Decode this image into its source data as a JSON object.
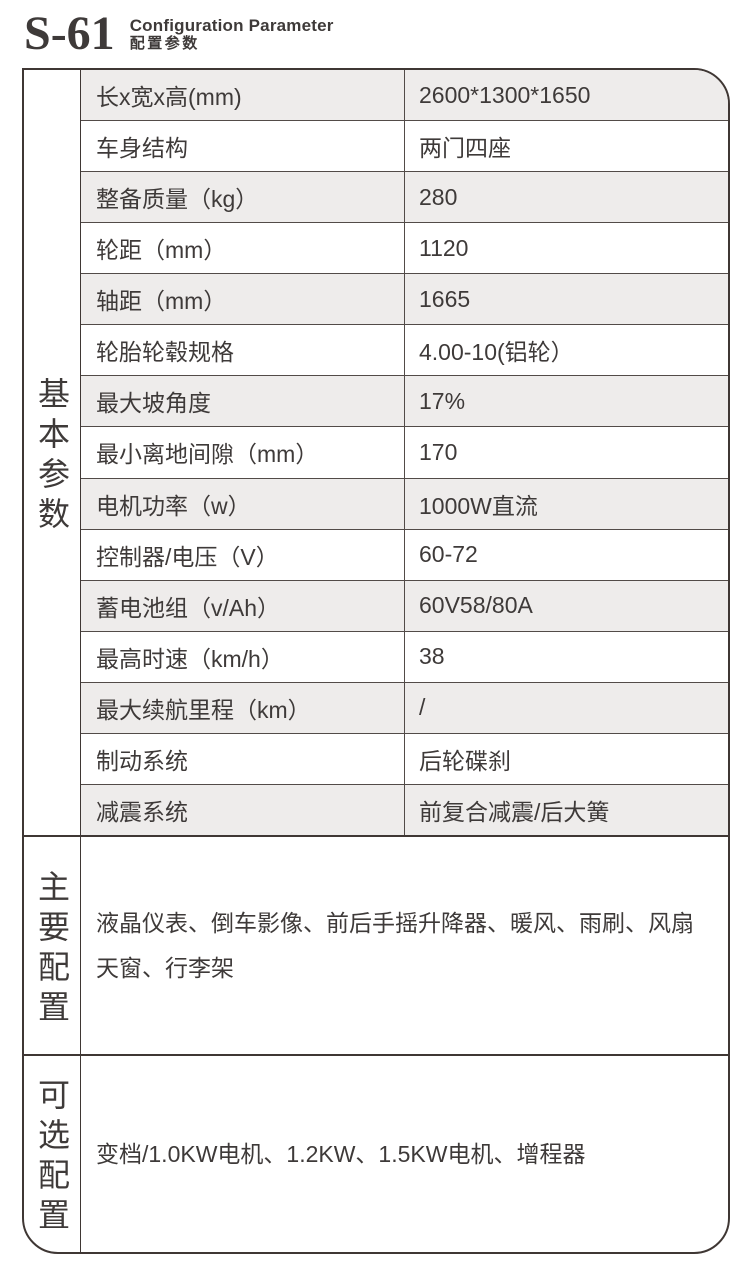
{
  "header": {
    "model": "S-61",
    "subtitle_en": "Configuration Parameter",
    "subtitle_zh": "配置参数"
  },
  "colors": {
    "text": "#3e3a39",
    "border": "#3f3734",
    "row-line": "#524b48",
    "row-alt": "#eeeceb",
    "bg": "#ffffff"
  },
  "spec_table": {
    "sections": [
      {
        "title": "基本参数"
      },
      {
        "title": "主要配置",
        "content": "液晶仪表、倒车影像、前后手摇升降器、暖风、雨刷、风扇天窗、行李架"
      },
      {
        "title": "可选配置",
        "content": "变档/1.0KW电机、1.2KW、1.5KW电机、增程器"
      }
    ],
    "rows": [
      {
        "label": "长x宽x高(mm)",
        "value": "2600*1300*1650"
      },
      {
        "label": "车身结构",
        "value": "两门四座"
      },
      {
        "label": "整备质量（kg）",
        "value": "280"
      },
      {
        "label": "轮距（mm）",
        "value": "1120"
      },
      {
        "label": "轴距（mm）",
        "value": "1665"
      },
      {
        "label": "轮胎轮毂规格",
        "value": "4.00-10(铝轮）"
      },
      {
        "label": "最大坡角度",
        "value": "17%"
      },
      {
        "label": "最小离地间隙（mm）",
        "value": "170"
      },
      {
        "label": "电机功率（w）",
        "value": "1000W直流"
      },
      {
        "label": "控制器/电压（V）",
        "value": "60-72"
      },
      {
        "label": "蓄电池组（v/Ah）",
        "value": "60V58/80A"
      },
      {
        "label": "最高时速（km/h）",
        "value": "38"
      },
      {
        "label": "最大续航里程（km）",
        "value": "/"
      },
      {
        "label": "制动系统",
        "value": "后轮碟刹"
      },
      {
        "label": "减震系统",
        "value": "前复合减震/后大簧"
      }
    ]
  }
}
